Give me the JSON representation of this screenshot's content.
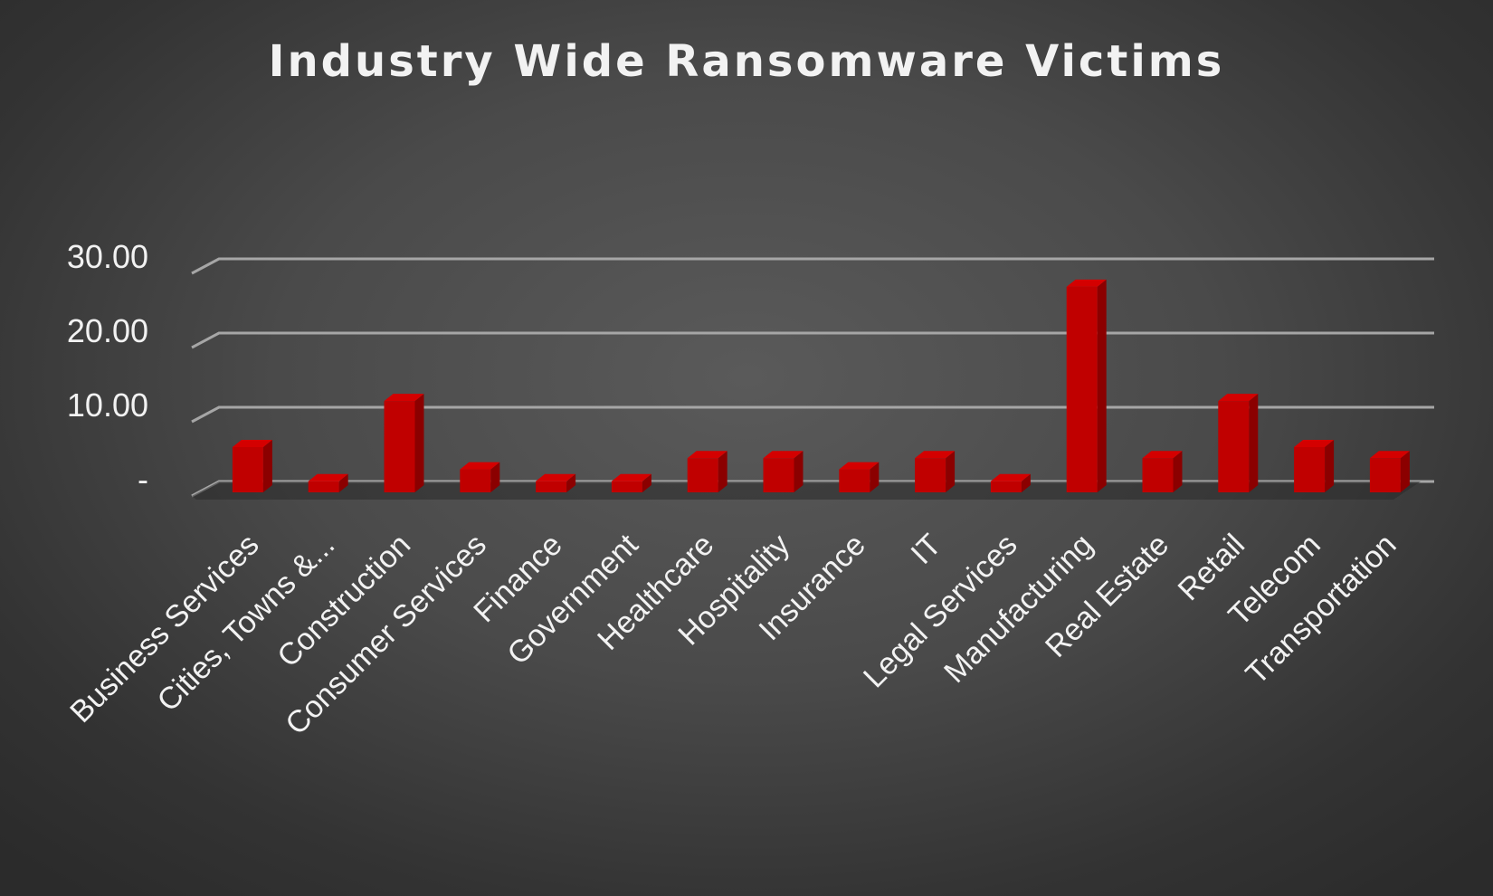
{
  "chart_data": {
    "type": "bar",
    "title": "Industry Wide Ransomware Victims",
    "xlabel": "",
    "ylabel": "",
    "categories": [
      "Business Services",
      "Cities, Towns &...",
      "Construction",
      "Consumer Services",
      "Finance",
      "Government",
      "Healthcare",
      "Hospitality",
      "Insurance",
      "IT",
      "Legal Services",
      "Manufacturing",
      "Real Estate",
      "Retail",
      "Telecom",
      "Transportation"
    ],
    "values": [
      6.1,
      1.5,
      12.3,
      3.1,
      1.5,
      1.5,
      4.6,
      4.6,
      3.1,
      4.6,
      1.5,
      27.7,
      4.6,
      12.3,
      6.1,
      4.6
    ],
    "ylim": [
      0,
      30
    ],
    "yticks": [
      {
        "value": 0,
        "label": "-"
      },
      {
        "value": 10,
        "label": "10.00"
      },
      {
        "value": 20,
        "label": "20.00"
      },
      {
        "value": 30,
        "label": "30.00"
      }
    ],
    "grid": true,
    "legend": "none",
    "colors": {
      "bar": "#c00000",
      "bar_side": "#8b0000",
      "bar_top": "#d40000",
      "gridline": "#a6a6a6",
      "text": "#f2f2f2"
    }
  }
}
